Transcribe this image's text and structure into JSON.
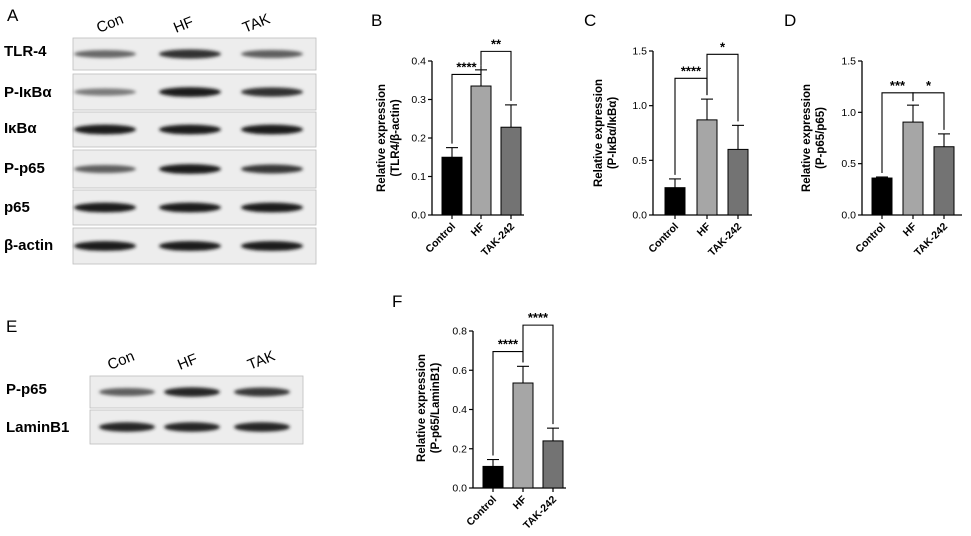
{
  "panels": {
    "a": "A",
    "b": "B",
    "c": "C",
    "d": "D",
    "e": "E",
    "f": "F"
  },
  "blot_a": {
    "lanes": [
      "Con",
      "HF",
      "TAK"
    ],
    "rows": [
      {
        "label": "TLR-4",
        "intensity": [
          0.55,
          0.85,
          0.6
        ]
      },
      {
        "label": "P-IκBα",
        "intensity": [
          0.45,
          0.95,
          0.85
        ]
      },
      {
        "label": "IκBα",
        "intensity": [
          0.95,
          0.95,
          0.95
        ]
      },
      {
        "label": "P-p65",
        "intensity": [
          0.6,
          0.95,
          0.8
        ]
      },
      {
        "label": "p65",
        "intensity": [
          0.95,
          0.95,
          0.95
        ]
      },
      {
        "label": "β-actin",
        "intensity": [
          0.95,
          0.95,
          0.95
        ]
      }
    ]
  },
  "blot_e": {
    "lanes": [
      "Con",
      "HF",
      "TAK"
    ],
    "rows": [
      {
        "label": "P-p65",
        "intensity": [
          0.6,
          0.9,
          0.8
        ]
      },
      {
        "label": "LaminB1",
        "intensity": [
          0.9,
          0.9,
          0.9
        ]
      }
    ]
  },
  "chart_data": [
    {
      "id": "B",
      "type": "bar",
      "categories": [
        "Control",
        "HF",
        "TAK-242"
      ],
      "values": [
        0.15,
        0.335,
        0.228
      ],
      "errors": [
        0.025,
        0.042,
        0.058
      ],
      "colors": [
        "#000000",
        "#a6a6a6",
        "#737373"
      ],
      "ylabel": [
        "Relative expression",
        "(TLR4/β-actin)"
      ],
      "ylim": [
        0,
        0.4
      ],
      "yticks": [
        0.0,
        0.1,
        0.2,
        0.3,
        0.4
      ],
      "ytick_labels": [
        "0.0",
        "0.1",
        "0.2",
        "0.3",
        "0.4"
      ],
      "significance": [
        {
          "from": 0,
          "to": 1,
          "label": "****",
          "y": 0.365
        },
        {
          "from": 1,
          "to": 2,
          "label": "**",
          "y": 0.425
        }
      ]
    },
    {
      "id": "C",
      "type": "bar",
      "categories": [
        "Control",
        "HF",
        "TAK-242"
      ],
      "values": [
        0.25,
        0.87,
        0.6
      ],
      "errors": [
        0.08,
        0.19,
        0.22
      ],
      "colors": [
        "#000000",
        "#a6a6a6",
        "#737373"
      ],
      "ylabel": [
        "Relative expression",
        "(P-IκBα/IκBα)"
      ],
      "ylim": [
        0,
        1.5
      ],
      "yticks": [
        0.0,
        0.5,
        1.0,
        1.5
      ],
      "ytick_labels": [
        "0.0",
        "0.5",
        "1.0",
        "1.5"
      ],
      "significance": [
        {
          "from": 0,
          "to": 1,
          "label": "****",
          "y": 1.25
        },
        {
          "from": 1,
          "to": 2,
          "label": "*",
          "y": 1.47
        }
      ]
    },
    {
      "id": "D",
      "type": "bar",
      "categories": [
        "Control",
        "HF",
        "TAK-242"
      ],
      "values": [
        0.36,
        0.905,
        0.665
      ],
      "errors": [
        0.01,
        0.165,
        0.125
      ],
      "colors": [
        "#000000",
        "#a6a6a6",
        "#737373"
      ],
      "ylabel": [
        "Relative expression",
        "(P-p65/p65)"
      ],
      "ylim": [
        0,
        1.5
      ],
      "yticks": [
        0.0,
        0.5,
        1.0,
        1.5
      ],
      "ytick_labels": [
        "0.0",
        "0.5",
        "1.0",
        "1.5"
      ],
      "significance": [
        {
          "from": 0,
          "to": 1,
          "label": "***",
          "y": 1.19
        },
        {
          "from": 1,
          "to": 2,
          "label": "*",
          "y": 1.19
        }
      ]
    },
    {
      "id": "F",
      "type": "bar",
      "categories": [
        "Control",
        "HF",
        "TAK-242"
      ],
      "values": [
        0.11,
        0.535,
        0.24
      ],
      "errors": [
        0.035,
        0.085,
        0.065
      ],
      "colors": [
        "#000000",
        "#a6a6a6",
        "#737373"
      ],
      "ylabel": [
        "Relative expression",
        "(P-p65/LaminB1)"
      ],
      "ylim": [
        0,
        0.8
      ],
      "yticks": [
        0.0,
        0.2,
        0.4,
        0.6,
        0.8
      ],
      "ytick_labels": [
        "0.0",
        "0.2",
        "0.4",
        "0.6",
        "0.8"
      ],
      "significance": [
        {
          "from": 0,
          "to": 1,
          "label": "****",
          "y": 0.695
        },
        {
          "from": 1,
          "to": 2,
          "label": "****",
          "y": 0.83
        }
      ]
    }
  ]
}
